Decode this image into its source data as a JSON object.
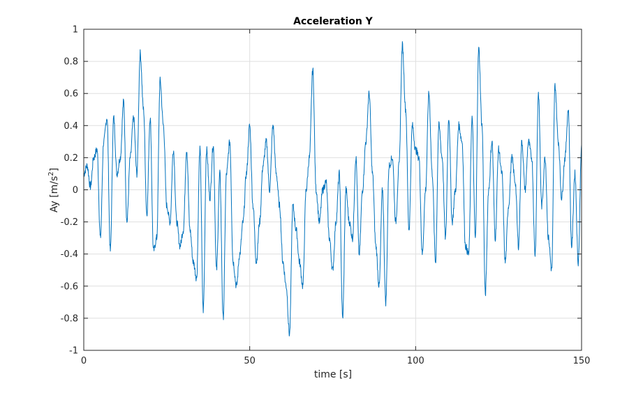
{
  "chart_data": {
    "type": "line",
    "title": "Acceleration Y",
    "xlabel": "time [s]",
    "ylabel_main": "Ay [m/s",
    "ylabel_sup": "2",
    "ylabel_end": "]",
    "xlim": [
      0,
      150
    ],
    "ylim": [
      -1,
      1
    ],
    "xticks": [
      0,
      50,
      100,
      150
    ],
    "yticks": [
      -1,
      -0.8,
      -0.6,
      -0.4,
      -0.2,
      0,
      0.2,
      0.4,
      0.6,
      0.8,
      1
    ],
    "grid": true,
    "series": [
      {
        "color": "#0072bd",
        "x": [
          0,
          1,
          2,
          3,
          4,
          5,
          6,
          7,
          8,
          9,
          10,
          11,
          12,
          13,
          14,
          15,
          16,
          17,
          18,
          19,
          20,
          21,
          22,
          23,
          24,
          25,
          26,
          27,
          28,
          29,
          30,
          31,
          32,
          33,
          34,
          35,
          36,
          37,
          38,
          39,
          40,
          41,
          42,
          43,
          44,
          45,
          46,
          47,
          48,
          49,
          50,
          51,
          52,
          53,
          54,
          55,
          56,
          57,
          58,
          59,
          60,
          61,
          62,
          63,
          64,
          65,
          66,
          67,
          68,
          69,
          70,
          71,
          72,
          73,
          74,
          75,
          76,
          77,
          78,
          79,
          80,
          81,
          82,
          83,
          84,
          85,
          86,
          87,
          88,
          89,
          90,
          91,
          92,
          93,
          94,
          95,
          96,
          97,
          98,
          99,
          100,
          101,
          102,
          103,
          104,
          105,
          106,
          107,
          108,
          109,
          110,
          111,
          112,
          113,
          114,
          115,
          116,
          117,
          118,
          119,
          120,
          121,
          122,
          123,
          124,
          125,
          126,
          127,
          128,
          129,
          130,
          131,
          132,
          133,
          134,
          135,
          136,
          137,
          138,
          139,
          140,
          141,
          142,
          143,
          144,
          145,
          146,
          147,
          148,
          149,
          150
        ],
        "y": [
          0.1,
          0.15,
          0.02,
          0.2,
          0.25,
          -0.3,
          0.3,
          0.45,
          -0.38,
          0.45,
          0.1,
          0.2,
          0.55,
          -0.2,
          0.2,
          0.45,
          0.1,
          0.85,
          0.5,
          -0.15,
          0.45,
          -0.38,
          -0.3,
          0.68,
          0.4,
          -0.1,
          -0.2,
          0.25,
          -0.2,
          -0.35,
          -0.25,
          0.25,
          -0.25,
          -0.45,
          -0.55,
          0.25,
          -0.75,
          0.25,
          -0.05,
          0.28,
          -0.5,
          0.1,
          -0.8,
          0.1,
          0.3,
          -0.45,
          -0.6,
          -0.4,
          -0.2,
          0.1,
          0.4,
          -0.1,
          -0.45,
          -0.2,
          0.15,
          0.3,
          0.0,
          0.4,
          0.1,
          -0.1,
          -0.45,
          -0.6,
          -0.9,
          -0.1,
          -0.25,
          -0.45,
          -0.6,
          0.0,
          0.2,
          0.75,
          0.0,
          -0.2,
          0.0,
          0.05,
          -0.3,
          -0.5,
          -0.2,
          0.1,
          -0.8,
          0.0,
          -0.2,
          -0.3,
          0.2,
          -0.4,
          0.0,
          0.3,
          0.6,
          0.1,
          -0.35,
          -0.6,
          0.0,
          -0.7,
          0.15,
          0.2,
          -0.2,
          0.15,
          0.9,
          0.5,
          -0.25,
          0.4,
          0.25,
          0.2,
          -0.4,
          0.0,
          0.6,
          0.1,
          -0.45,
          0.4,
          0.2,
          -0.3,
          0.45,
          -0.2,
          0.0,
          0.4,
          0.3,
          -0.35,
          -0.4,
          0.45,
          -0.3,
          0.88,
          0.4,
          -0.65,
          0.0,
          0.3,
          -0.3,
          0.25,
          0.1,
          -0.45,
          -0.1,
          0.2,
          0.05,
          -0.35,
          0.3,
          0.0,
          0.3,
          0.2,
          -0.4,
          0.6,
          -0.1,
          0.2,
          -0.3,
          -0.5,
          0.65,
          0.3,
          -0.05,
          0.2,
          0.5,
          -0.35,
          0.1,
          -0.45,
          0.28
        ]
      }
    ]
  }
}
